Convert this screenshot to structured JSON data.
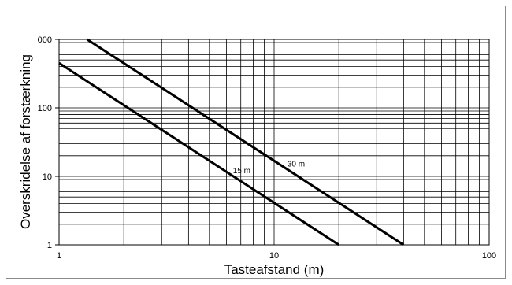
{
  "chart_data": {
    "type": "line",
    "title": "",
    "xlabel": "Tasteafstand (m)",
    "ylabel": "Overskridelse af forstærkning",
    "x_scale": "log",
    "y_scale": "log",
    "xlim": [
      1,
      100
    ],
    "ylim": [
      1,
      1000
    ],
    "grid": true,
    "legend": "none",
    "x_ticks": [
      "1",
      "10",
      "100"
    ],
    "y_ticks": [
      "1",
      "10",
      "100",
      "000"
    ],
    "series": [
      {
        "name": "15 m",
        "color": "#000000",
        "x": [
          1,
          20
        ],
        "y": [
          450,
          1
        ]
      },
      {
        "name": "30 m",
        "color": "#000000",
        "x": [
          1.35,
          40
        ],
        "y": [
          1000,
          1
        ]
      }
    ]
  }
}
